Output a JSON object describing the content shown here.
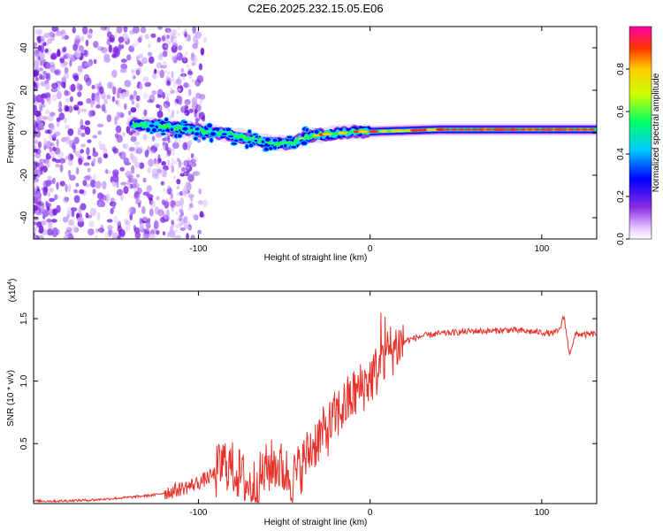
{
  "title": "C2E6.2025.232.15.05.E06",
  "chart_data": [
    {
      "type": "heatmap",
      "name": "spectrogram",
      "xlabel": "Height of straight line (km)",
      "ylabel": "Frequency (Hz)",
      "xlim": [
        -196,
        132
      ],
      "ylim": [
        -50,
        50
      ],
      "xticks": [
        -100,
        0,
        100
      ],
      "yticks": [
        -40,
        -20,
        0,
        20,
        40
      ],
      "colorbar": {
        "label": "Normalized spectral amplitude",
        "range": [
          0,
          1
        ],
        "ticks": [
          "0.0",
          "0.2",
          "0.4",
          "0.6",
          "0.8"
        ],
        "tick_values": [
          0,
          0.2,
          0.4,
          0.6,
          0.8
        ]
      },
      "band_track": {
        "x": [
          -138,
          -120,
          -100,
          -80,
          -70,
          -55,
          -45,
          -38,
          -30,
          -20,
          -10,
          0,
          20,
          40,
          60,
          80,
          100,
          120,
          132
        ],
        "freq": [
          4,
          3,
          1,
          -1,
          -3,
          -5,
          -5,
          -2,
          -1,
          -0.5,
          0.5,
          0.5,
          1,
          1.5,
          1.5,
          1.5,
          1.5,
          1.5,
          1.5
        ]
      }
    },
    {
      "type": "line",
      "name": "snr",
      "xlabel": "Height of straight line (km)",
      "ylabel": "SNR (10 * v/v)",
      "multiplier": "(x10",
      "multiplier_exp": "4",
      "multiplier_close": ")",
      "xlim": [
        -196,
        132
      ],
      "ylim": [
        0.02,
        1.72
      ],
      "xticks": [
        -100,
        0,
        100
      ],
      "yticks": [
        0.5,
        1.0,
        1.5
      ],
      "yticklabels": [
        "0.5",
        "1.0",
        "1.5"
      ],
      "color": "#e8312a",
      "x": [
        -196,
        -180,
        -160,
        -140,
        -125,
        -115,
        -105,
        -98,
        -90,
        -85,
        -80,
        -75,
        -70,
        -65,
        -60,
        -55,
        -50,
        -45,
        -40,
        -35,
        -30,
        -25,
        -20,
        -15,
        -10,
        -5,
        0,
        5,
        10,
        15,
        20,
        30,
        40,
        50,
        60,
        70,
        80,
        90,
        100,
        105,
        110,
        113,
        116,
        120,
        125,
        132
      ],
      "y": [
        0.04,
        0.04,
        0.05,
        0.07,
        0.09,
        0.12,
        0.16,
        0.2,
        0.26,
        0.35,
        0.3,
        0.24,
        0.15,
        0.2,
        0.3,
        0.34,
        0.28,
        0.22,
        0.32,
        0.45,
        0.55,
        0.6,
        0.72,
        0.8,
        0.88,
        0.95,
        1.02,
        1.1,
        1.22,
        1.28,
        1.32,
        1.36,
        1.38,
        1.39,
        1.4,
        1.4,
        1.41,
        1.4,
        1.39,
        1.38,
        1.4,
        1.52,
        1.22,
        1.38,
        1.37,
        1.38
      ]
    }
  ]
}
